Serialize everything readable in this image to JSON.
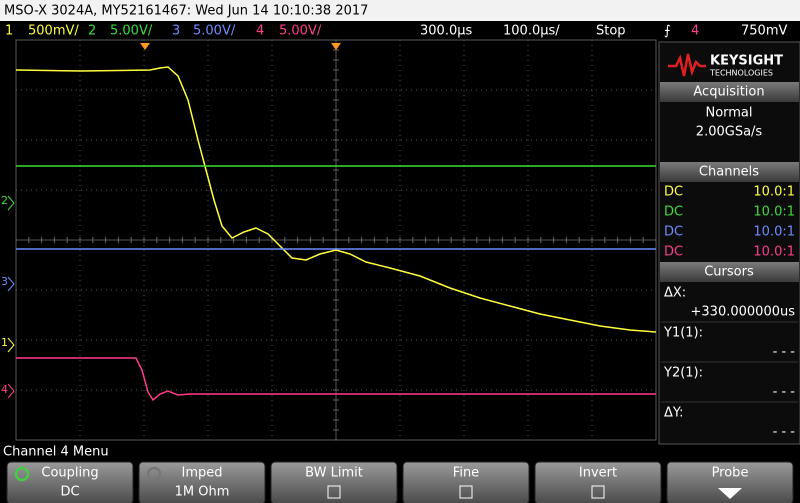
{
  "header": {
    "title": "MSO-X 3024A, MY52161467: Wed Jun 14 10:10:38 2017"
  },
  "status_bar": {
    "channels": [
      {
        "number": "1",
        "scale": "500mV/"
      },
      {
        "number": "2",
        "scale": "5.00V/"
      },
      {
        "number": "3",
        "scale": "5.00V/"
      },
      {
        "number": "4",
        "scale": "5.00V/"
      }
    ],
    "delay": "300.0µs",
    "timebase": "100.0µs/",
    "run_state": "Stop",
    "trigger": {
      "symbol": "⨍",
      "source": "4",
      "level": "750mV"
    }
  },
  "ground_markers": [
    "2",
    "3",
    "1",
    "4"
  ],
  "logo": {
    "brand": "KEYSIGHT",
    "sub": "TECHNOLOGIES"
  },
  "acquisition": {
    "title": "Acquisition",
    "mode": "Normal",
    "rate": "2.00GSa/s"
  },
  "channels_panel": {
    "title": "Channels",
    "rows": [
      [
        "DC",
        "10.0:1"
      ],
      [
        "DC",
        "10.0:1"
      ],
      [
        "DC",
        "10.0:1"
      ],
      [
        "DC",
        "10.0:1"
      ]
    ]
  },
  "cursors": {
    "title": "Cursors",
    "items": [
      {
        "label": "ΔX:",
        "value": "+330.000000us"
      },
      {
        "label": "Y1(1):",
        "value": "- - -"
      },
      {
        "label": "Y2(1):",
        "value": "- - -"
      },
      {
        "label": "ΔY:",
        "value": "- - -"
      }
    ]
  },
  "menu": {
    "title": "Channel 4 Menu",
    "softkeys": [
      {
        "label": "Coupling",
        "value": "DC"
      },
      {
        "label": "Imped",
        "value": "1M Ohm"
      },
      {
        "label": "BW Limit"
      },
      {
        "label": "Fine"
      },
      {
        "label": "Invert"
      },
      {
        "label": "Probe"
      }
    ]
  }
}
